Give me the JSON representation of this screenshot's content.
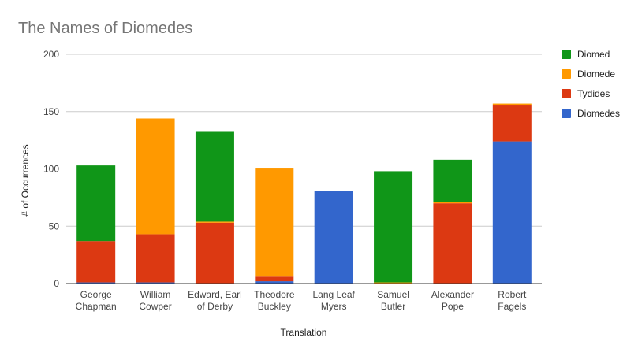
{
  "chart_data": {
    "type": "bar",
    "stacked": true,
    "title": "The Names of Diomedes",
    "xlabel": "Translation",
    "ylabel": "# of Occurrences",
    "ylim": [
      0,
      200
    ],
    "yticks": [
      0,
      50,
      100,
      150,
      200
    ],
    "grid": true,
    "legend_position": "right",
    "categories": [
      [
        "George",
        "Chapman"
      ],
      [
        "William",
        "Cowper"
      ],
      [
        "Edward, Earl",
        "of Derby"
      ],
      [
        "Theodore",
        "Buckley"
      ],
      [
        "Lang Leaf",
        "Myers"
      ],
      [
        "Samuel",
        "Butler"
      ],
      [
        "Alexander",
        "Pope"
      ],
      [
        "Robert",
        "Fagels"
      ]
    ],
    "series": [
      {
        "name": "Diomedes",
        "color": "#3366cc",
        "values": [
          1,
          1,
          0,
          2,
          81,
          0,
          0,
          124
        ]
      },
      {
        "name": "Tydides",
        "color": "#dc3912",
        "values": [
          36,
          42,
          53,
          4,
          0,
          0,
          70,
          32
        ]
      },
      {
        "name": "Diomede",
        "color": "#ff9900",
        "values": [
          0,
          101,
          1,
          95,
          0,
          1,
          1,
          1
        ]
      },
      {
        "name": "Diomed",
        "color": "#109618",
        "values": [
          66,
          0,
          79,
          0,
          0,
          97,
          37,
          0
        ]
      }
    ],
    "legend_order": [
      "Diomed",
      "Diomede",
      "Tydides",
      "Diomedes"
    ]
  }
}
